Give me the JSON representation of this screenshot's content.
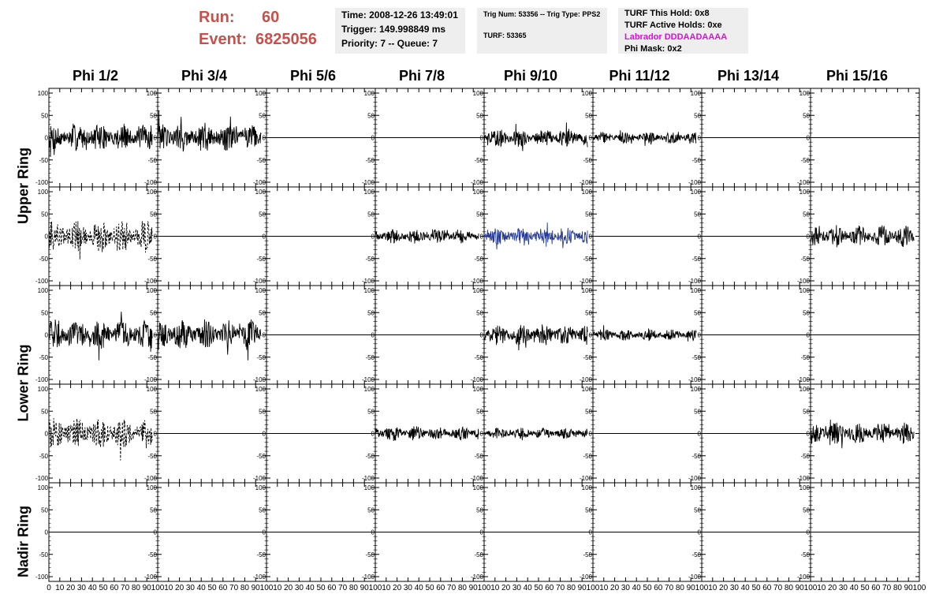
{
  "header": {
    "run_label": "Run:",
    "run_value": "60",
    "event_label": "Event:",
    "event_value": "6825056",
    "time": "Time: 2008-12-26 13:49:01",
    "trigger": "Trigger: 149.998849 ms",
    "priority": "Priority: 7 -- Queue: 7",
    "trig_num": "Trig Num: 53356 -- Trig Type: PPS2",
    "turf": "TURF: 53365",
    "turf_this_hold": "TURF This Hold: 0x8",
    "turf_active_holds": "TURF Active Holds: 0xe",
    "labrador": "Labrador DDDAADAAAA",
    "phi_mask": "Phi Mask: 0x2"
  },
  "columns": [
    "Phi 1/2",
    "Phi 3/4",
    "Phi 5/6",
    "Phi 7/8",
    "Phi 9/10",
    "Phi 11/12",
    "Phi 13/14",
    "Phi 15/16"
  ],
  "rings": [
    "Upper Ring",
    "Lower Ring",
    "Nadir Ring"
  ],
  "colors": {
    "trace": "#000000",
    "highlight": "#283c96",
    "run_text": "#c8504a",
    "labrador": "#e10ae1",
    "box_bg": "#eeeeee"
  },
  "chart_data": {
    "type": "line",
    "x_range": [
      0,
      100
    ],
    "y_range": [
      -100,
      100
    ],
    "x_ticks": [
      0,
      10,
      20,
      30,
      40,
      50,
      60,
      70,
      80,
      90,
      100
    ],
    "y_ticks": [
      100,
      50,
      0,
      -50,
      -100
    ],
    "rows": 5,
    "cols": 8,
    "panels": [
      {
        "row": 0,
        "col": 0,
        "amp": 32,
        "style": "solid"
      },
      {
        "row": 0,
        "col": 1,
        "amp": 35,
        "style": "solid"
      },
      {
        "row": 0,
        "col": 2,
        "amp": 0,
        "style": "flat"
      },
      {
        "row": 0,
        "col": 3,
        "amp": 0,
        "style": "flat"
      },
      {
        "row": 0,
        "col": 4,
        "amp": 22,
        "style": "solid"
      },
      {
        "row": 0,
        "col": 5,
        "amp": 13,
        "style": "solid"
      },
      {
        "row": 0,
        "col": 6,
        "amp": 0,
        "style": "flat"
      },
      {
        "row": 0,
        "col": 7,
        "amp": 0,
        "style": "flat"
      },
      {
        "row": 1,
        "col": 0,
        "amp": 38,
        "style": "dashed"
      },
      {
        "row": 1,
        "col": 1,
        "amp": 0,
        "style": "flat"
      },
      {
        "row": 1,
        "col": 2,
        "amp": 0,
        "style": "flat"
      },
      {
        "row": 1,
        "col": 3,
        "amp": 17,
        "style": "solid"
      },
      {
        "row": 1,
        "col": 4,
        "amp": 20,
        "style": "highlight"
      },
      {
        "row": 1,
        "col": 5,
        "amp": 0,
        "style": "flat"
      },
      {
        "row": 1,
        "col": 6,
        "amp": 0,
        "style": "flat"
      },
      {
        "row": 1,
        "col": 7,
        "amp": 25,
        "style": "solid"
      },
      {
        "row": 2,
        "col": 0,
        "amp": 35,
        "style": "solid"
      },
      {
        "row": 2,
        "col": 1,
        "amp": 35,
        "style": "solid"
      },
      {
        "row": 2,
        "col": 2,
        "amp": 0,
        "style": "flat"
      },
      {
        "row": 2,
        "col": 3,
        "amp": 0,
        "style": "flat"
      },
      {
        "row": 2,
        "col": 4,
        "amp": 25,
        "style": "solid"
      },
      {
        "row": 2,
        "col": 5,
        "amp": 14,
        "style": "solid"
      },
      {
        "row": 2,
        "col": 6,
        "amp": 0,
        "style": "flat"
      },
      {
        "row": 2,
        "col": 7,
        "amp": 0,
        "style": "flat"
      },
      {
        "row": 3,
        "col": 0,
        "amp": 35,
        "style": "dashed"
      },
      {
        "row": 3,
        "col": 1,
        "amp": 0,
        "style": "flat"
      },
      {
        "row": 3,
        "col": 2,
        "amp": 0,
        "style": "flat"
      },
      {
        "row": 3,
        "col": 3,
        "amp": 17,
        "style": "solid"
      },
      {
        "row": 3,
        "col": 4,
        "amp": 13,
        "style": "solid"
      },
      {
        "row": 3,
        "col": 5,
        "amp": 0,
        "style": "flat"
      },
      {
        "row": 3,
        "col": 6,
        "amp": 0,
        "style": "flat"
      },
      {
        "row": 3,
        "col": 7,
        "amp": 25,
        "style": "solid"
      },
      {
        "row": 4,
        "col": 0,
        "amp": 0,
        "style": "flat"
      },
      {
        "row": 4,
        "col": 1,
        "amp": 0,
        "style": "flat"
      },
      {
        "row": 4,
        "col": 2,
        "amp": 0,
        "style": "flat"
      },
      {
        "row": 4,
        "col": 3,
        "amp": 0,
        "style": "flat"
      },
      {
        "row": 4,
        "col": 4,
        "amp": 0,
        "style": "flat"
      },
      {
        "row": 4,
        "col": 5,
        "amp": 0,
        "style": "flat"
      },
      {
        "row": 4,
        "col": 6,
        "amp": 0,
        "style": "flat"
      },
      {
        "row": 4,
        "col": 7,
        "amp": 0,
        "style": "flat"
      }
    ]
  }
}
